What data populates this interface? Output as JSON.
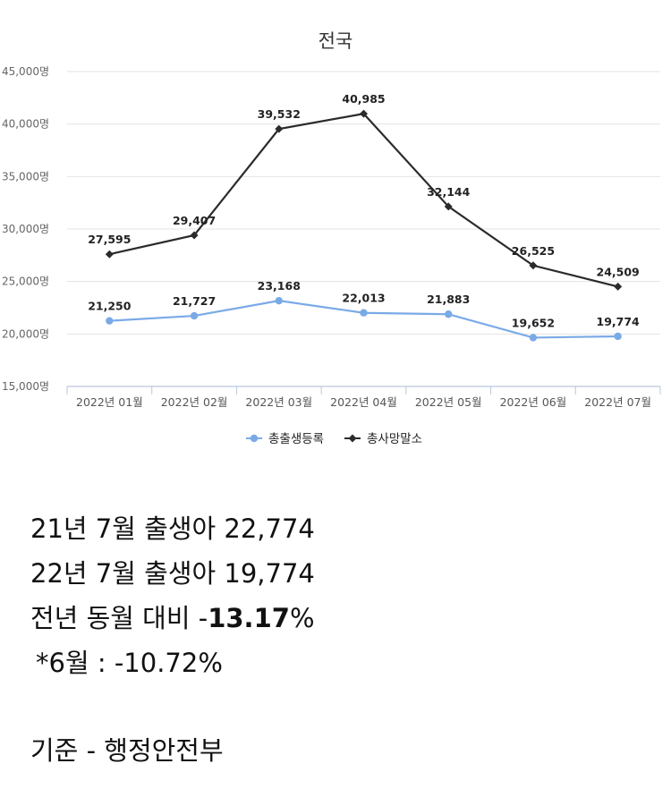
{
  "chart_data": {
    "type": "line",
    "title": "전국",
    "categories": [
      "2022년 01월",
      "2022년 02월",
      "2022년 03월",
      "2022년 04월",
      "2022년 05월",
      "2022년 06월",
      "2022년 07월"
    ],
    "series": [
      {
        "name": "총출생등록",
        "color": "#7aaae6",
        "marker": "circle",
        "values": [
          21250,
          21727,
          23168,
          22013,
          21883,
          19652,
          19774
        ],
        "labels": [
          "21,250",
          "21,727",
          "23,168",
          "22,013",
          "21,883",
          "19,652",
          "19,774"
        ]
      },
      {
        "name": "총사망말소",
        "color": "#2b2b2b",
        "marker": "diamond",
        "values": [
          27595,
          29407,
          39532,
          40985,
          32144,
          26525,
          24509
        ],
        "labels": [
          "27,595",
          "29,407",
          "39,532",
          "40,985",
          "32,144",
          "26,525",
          "24,509"
        ]
      }
    ],
    "ylim": [
      15000,
      45000
    ],
    "yticks": [
      45000,
      40000,
      35000,
      30000,
      25000,
      20000,
      15000
    ],
    "ytick_labels": [
      "45,000명",
      "40,000명",
      "35,000명",
      "30,000명",
      "25,000명",
      "20,000명",
      "15,000명"
    ],
    "grid": true,
    "legend": "bottom-center",
    "xlabel": "",
    "ylabel": ""
  },
  "notes": {
    "line1": "21년 7월 출생아 22,774",
    "line2": "22년 7월 출생아 19,774",
    "line3_prefix": "전년 동월 대비 -",
    "line3_value": "13.17",
    "line3_suffix": "%",
    "line4": "*6월 : -10.72%",
    "source": "기준 - 행정안전부"
  }
}
